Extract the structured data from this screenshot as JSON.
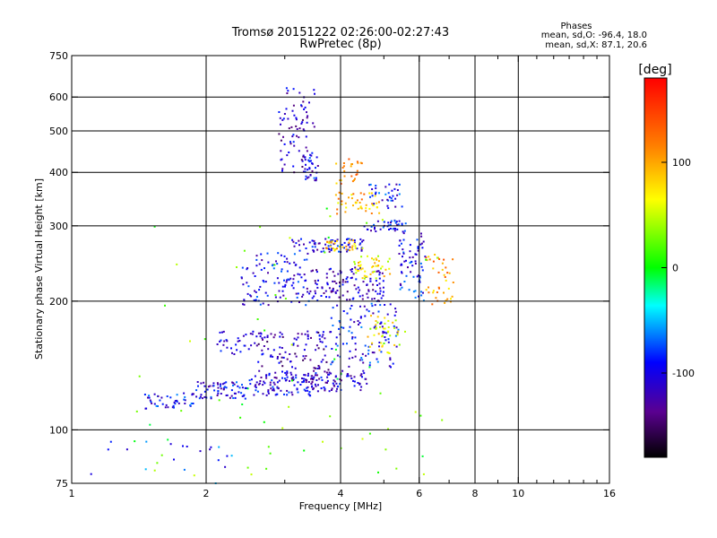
{
  "chart_data": {
    "type": "scatter",
    "title": "Tromsø 20151222 02:26:00-02:27:43",
    "subtitle": "RwPretec (8p)",
    "xlabel": "Frequency [MHz]",
    "ylabel": "Stationary phase Virtual Height [km]",
    "x_scale": "log",
    "y_scale": "log",
    "xlim": [
      1,
      16
    ],
    "ylim": [
      75,
      750
    ],
    "x_ticks": [
      1,
      2,
      4,
      6,
      8,
      10,
      16
    ],
    "x_tick_labels": [
      "1",
      "2",
      "4",
      "6",
      "8",
      "10",
      "16"
    ],
    "x_grid": [
      2,
      4,
      6,
      8,
      10
    ],
    "y_ticks": [
      75,
      100,
      200,
      300,
      400,
      500,
      600,
      750
    ],
    "y_tick_labels": [
      "75",
      "100",
      "200",
      "300",
      "400",
      "500",
      "600",
      "750"
    ],
    "y_grid": [
      100,
      200,
      300,
      400,
      500,
      600
    ],
    "grid": true,
    "phase_info": {
      "title": "Phases",
      "line_o": "mean, sd,O: -96.4, 18.0",
      "line_x": "mean, sd,X: 87.1, 20.6"
    },
    "colorbar": {
      "label": "[deg]",
      "range": [
        -180,
        180
      ],
      "ticks": [
        100,
        0,
        -100
      ],
      "tick_labels": [
        "100",
        "0",
        "-100"
      ]
    },
    "clusters": [
      {
        "x": [
          1.45,
          1.9
        ],
        "y": [
          112,
          122
        ],
        "phase": -95,
        "count": 45
      },
      {
        "x": [
          1.9,
          2.5
        ],
        "y": [
          118,
          130
        ],
        "phase": -100,
        "count": 70
      },
      {
        "x": [
          2.5,
          3.5
        ],
        "y": [
          120,
          135
        ],
        "phase": -105,
        "count": 90
      },
      {
        "x": [
          3.3,
          4.6
        ],
        "y": [
          123,
          138
        ],
        "phase": -110,
        "count": 80
      },
      {
        "x": [
          2.1,
          2.7
        ],
        "y": [
          150,
          170
        ],
        "phase": -105,
        "count": 35
      },
      {
        "x": [
          2.6,
          3.8
        ],
        "y": [
          130,
          170
        ],
        "phase": -120,
        "count": 120
      },
      {
        "x": [
          3.8,
          5.4
        ],
        "y": [
          140,
          200
        ],
        "phase": -95,
        "count": 110
      },
      {
        "x": [
          4.6,
          5.6
        ],
        "y": [
          150,
          185
        ],
        "phase": 65,
        "count": 40
      },
      {
        "x": [
          2.4,
          3.4
        ],
        "y": [
          195,
          260
        ],
        "phase": -100,
        "count": 110
      },
      {
        "x": [
          3.4,
          5.0
        ],
        "y": [
          200,
          240
        ],
        "phase": -115,
        "count": 120
      },
      {
        "x": [
          4.2,
          5.2
        ],
        "y": [
          225,
          255
        ],
        "phase": 70,
        "count": 45
      },
      {
        "x": [
          5.4,
          6.2
        ],
        "y": [
          200,
          290
        ],
        "phase": -95,
        "count": 70
      },
      {
        "x": [
          6.2,
          7.2
        ],
        "y": [
          195,
          260
        ],
        "phase": 105,
        "count": 40
      },
      {
        "x": [
          3.1,
          4.5
        ],
        "y": [
          260,
          280
        ],
        "phase": -105,
        "count": 70
      },
      {
        "x": [
          3.7,
          4.4
        ],
        "y": [
          262,
          278
        ],
        "phase": 85,
        "count": 30
      },
      {
        "x": [
          4.5,
          5.6
        ],
        "y": [
          290,
          310
        ],
        "phase": -100,
        "count": 40
      },
      {
        "x": [
          3.9,
          4.9
        ],
        "y": [
          320,
          360
        ],
        "phase": 95,
        "count": 45
      },
      {
        "x": [
          3.9,
          4.5
        ],
        "y": [
          370,
          430
        ],
        "phase": 110,
        "count": 25
      },
      {
        "x": [
          4.5,
          5.5
        ],
        "y": [
          330,
          380
        ],
        "phase": -95,
        "count": 35
      },
      {
        "x": [
          2.9,
          3.5
        ],
        "y": [
          400,
          630
        ],
        "phase": -115,
        "count": 80
      },
      {
        "x": [
          3.3,
          3.6
        ],
        "y": [
          380,
          450
        ],
        "phase": -100,
        "count": 30
      },
      {
        "x": [
          1.3,
          7.0
        ],
        "y": [
          78,
          330
        ],
        "phase": 20,
        "count": 70
      },
      {
        "x": [
          1.1,
          2.3
        ],
        "y": [
          75,
          95
        ],
        "phase": -80,
        "count": 20
      }
    ]
  }
}
